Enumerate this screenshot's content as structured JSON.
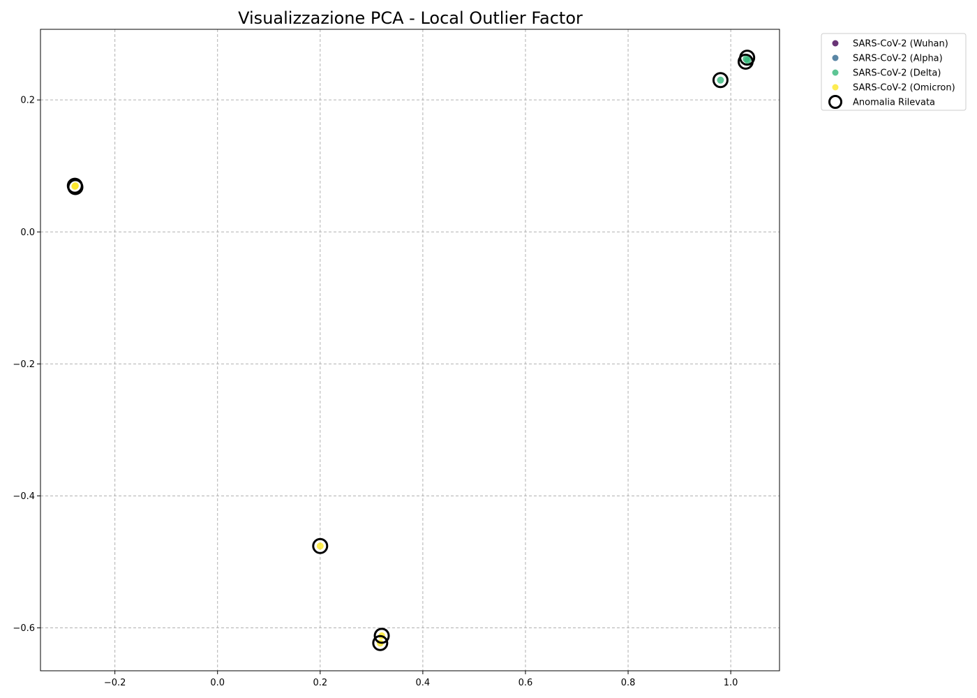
{
  "chart_data": {
    "type": "scatter",
    "title": "Visualizzazione PCA - Local Outlier Factor",
    "xlabel": "",
    "ylabel": "",
    "xlim": [
      -0.345,
      1.095
    ],
    "ylim": [
      -0.665,
      0.307
    ],
    "xticks": [
      -0.2,
      0.0,
      0.2,
      0.4,
      0.6,
      0.8,
      1.0
    ],
    "yticks": [
      -0.6,
      -0.4,
      -0.2,
      0.0,
      0.2
    ],
    "xtick_labels": [
      "−0.2",
      "0.0",
      "0.2",
      "0.4",
      "0.6",
      "0.8",
      "1.0"
    ],
    "ytick_labels": [
      "−0.6",
      "−0.4",
      "−0.2",
      "0.0",
      "0.2"
    ],
    "grid": true,
    "legend_position": "outside-top-right",
    "series": [
      {
        "name": "SARS-CoV-2 (Wuhan)",
        "color": "#440154",
        "points": []
      },
      {
        "name": "SARS-CoV-2 (Alpha)",
        "color": "#31688e",
        "points": []
      },
      {
        "name": "SARS-CoV-2 (Delta)",
        "color": "#35b779",
        "points": [
          [
            0.98,
            0.23
          ],
          [
            1.03,
            0.262
          ],
          [
            1.033,
            0.26
          ]
        ]
      },
      {
        "name": "SARS-CoV-2 (Omicron)",
        "color": "#fde725",
        "points": [
          [
            -0.278,
            0.069
          ],
          [
            -0.277,
            0.07
          ],
          [
            0.2,
            -0.476
          ],
          [
            0.32,
            -0.612
          ],
          [
            0.317,
            -0.623
          ]
        ]
      }
    ],
    "anomalies": {
      "name": "Anomalia Rilevata",
      "edge_color": "#000000",
      "points": [
        [
          -0.278,
          0.07
        ],
        [
          -0.277,
          0.068
        ],
        [
          0.2,
          -0.476
        ],
        [
          0.32,
          -0.612
        ],
        [
          0.317,
          -0.623
        ],
        [
          0.98,
          0.23
        ],
        [
          1.029,
          0.258
        ],
        [
          1.032,
          0.264
        ]
      ]
    }
  }
}
